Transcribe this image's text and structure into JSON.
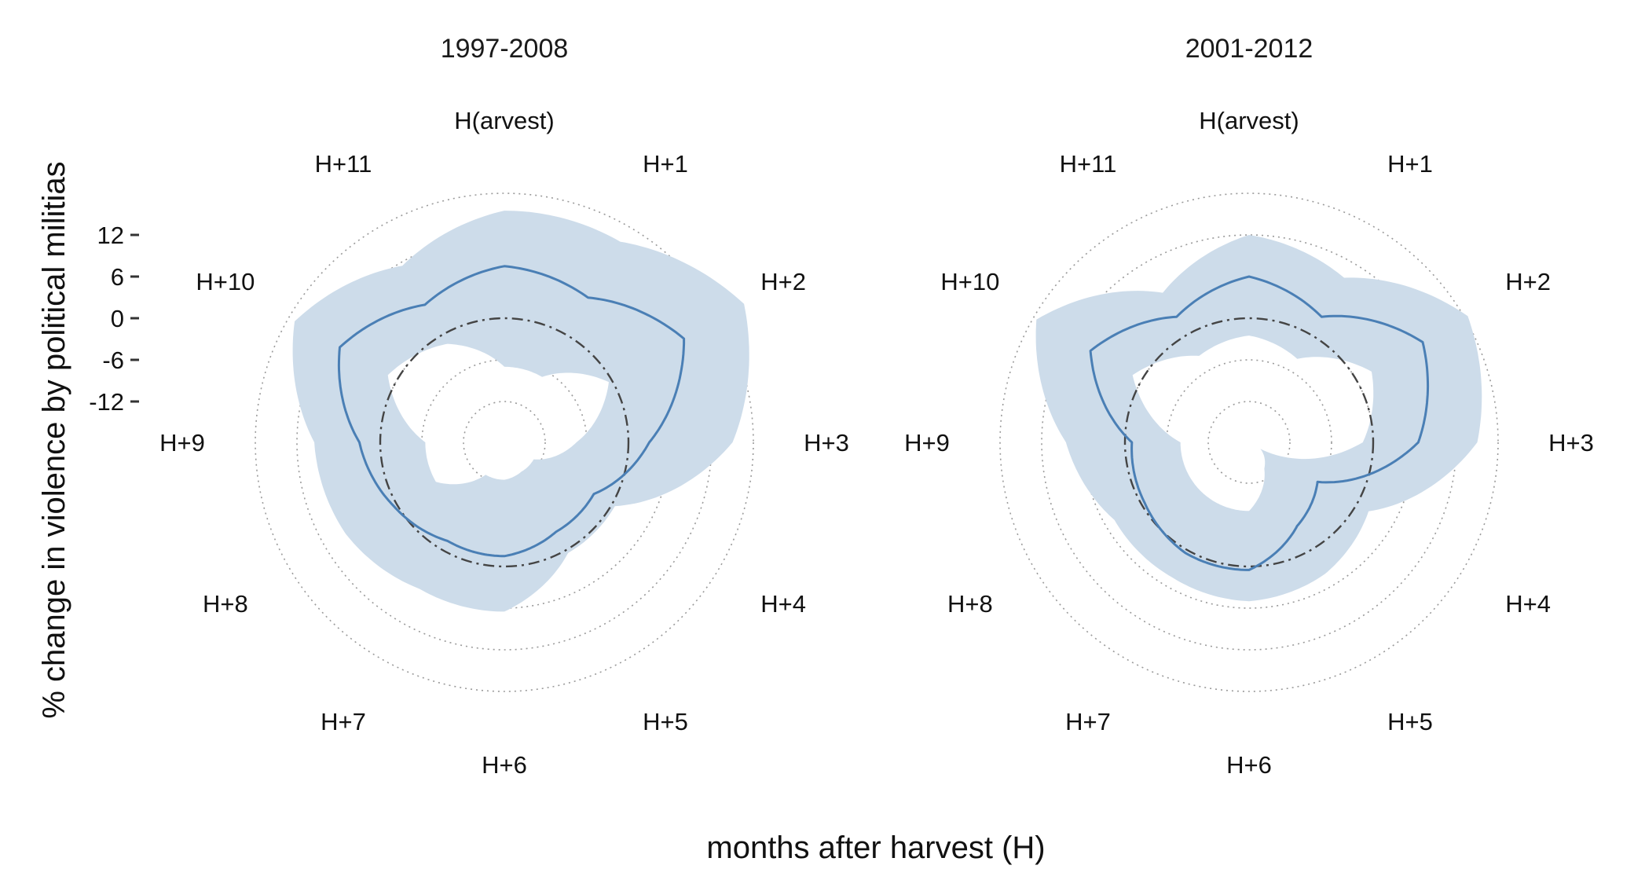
{
  "chart_data": {
    "type": "radar",
    "xlabel": "months after harvest (H)",
    "ylabel": "% change in violence by political militias",
    "months": [
      "H(arvest)",
      "H+1",
      "H+2",
      "H+3",
      "H+4",
      "H+5",
      "H+6",
      "H+7",
      "H+8",
      "H+9",
      "H+10",
      "H+11"
    ],
    "yticks": [
      12,
      6,
      0,
      -6,
      -12
    ],
    "ylim": [
      -24,
      18
    ],
    "grid": "dotted concentric circles",
    "reference_line": 0,
    "colors": {
      "band": "#cddcea",
      "line": "#4a7fb5",
      "reference": "#444444"
    },
    "panels": [
      {
        "title": "1997-2008",
        "estimate": [
          7.5,
          6.2,
          12.0,
          3.0,
          -3.0,
          -3.0,
          -1.5,
          -1.5,
          0.5,
          3.0,
          9.5,
          5.0
        ],
        "upper": [
          15.5,
          15.5,
          22.0,
          15.0,
          0.5,
          0.5,
          6.5,
          6.5,
          8.5,
          9.5,
          17.0,
          11.5
        ],
        "lower": [
          -7.0,
          -7.0,
          -0.5,
          -7.5,
          -13.0,
          -13.0,
          -12.5,
          -12.5,
          -6.5,
          -6.5,
          1.5,
          -1.5
        ]
      },
      {
        "title": "2001-2012",
        "estimate": [
          6.0,
          3.0,
          11.0,
          6.5,
          -6.5,
          -4.0,
          0.5,
          0.5,
          -0.5,
          -1.0,
          8.5,
          3.0
        ],
        "upper": [
          12.0,
          9.5,
          18.5,
          15.0,
          2.0,
          4.0,
          5.0,
          4.5,
          4.5,
          8.5,
          17.5,
          7.0
        ],
        "lower": [
          -2.5,
          -4.0,
          2.5,
          -1.5,
          -16.0,
          -13.5,
          -8.0,
          -8.0,
          -8.0,
          -8.0,
          1.5,
          -3.5
        ]
      }
    ]
  }
}
